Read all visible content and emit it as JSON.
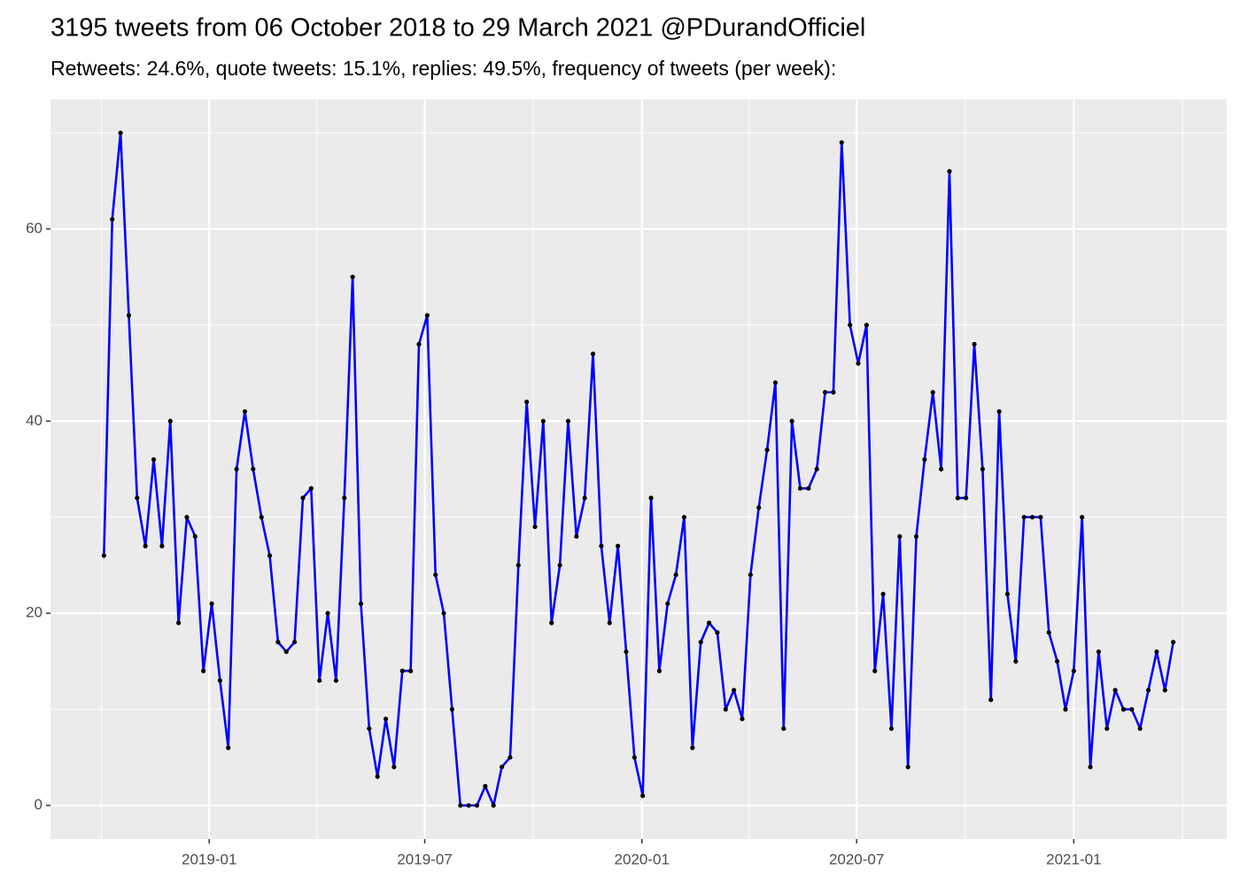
{
  "chart_data": {
    "type": "line",
    "title": "3195 tweets from 06 October 2018 to 29 March 2021 @PDurandOfficiel",
    "subtitle": "Retweets: 24.6%, quote tweets: 15.1%, replies: 49.5%, frequency of tweets (per week):",
    "color": "#0000ff",
    "point_color": "#000000",
    "grid": true,
    "values": [
      26,
      61,
      70,
      51,
      32,
      27,
      36,
      27,
      40,
      19,
      30,
      28,
      14,
      21,
      13,
      6,
      35,
      41,
      35,
      30,
      26,
      17,
      16,
      17,
      32,
      33,
      13,
      20,
      13,
      32,
      55,
      21,
      8,
      3,
      9,
      4,
      14,
      14,
      48,
      51,
      24,
      20,
      10,
      0,
      0,
      0,
      2,
      0,
      4,
      5,
      25,
      42,
      29,
      40,
      19,
      25,
      40,
      28,
      32,
      47,
      27,
      19,
      27,
      16,
      5,
      1,
      32,
      14,
      21,
      24,
      30,
      6,
      17,
      19,
      18,
      10,
      12,
      9,
      24,
      31,
      37,
      44,
      8,
      40,
      33,
      33,
      35,
      43,
      43,
      69,
      50,
      46,
      50,
      14,
      22,
      8,
      28,
      4,
      28,
      36,
      43,
      35,
      66,
      32,
      32,
      48,
      35,
      11,
      41,
      22,
      15,
      30,
      30,
      30,
      18,
      15,
      10,
      14,
      30,
      4,
      16,
      8,
      12,
      10,
      10,
      8,
      12,
      16,
      12,
      17
    ],
    "xlim": [
      -6.45,
      135.45
    ],
    "xticks": [
      {
        "value": 12.7,
        "label": "2019-01"
      },
      {
        "value": 38.7,
        "label": "2019-07"
      },
      {
        "value": 64.9,
        "label": "2020-01"
      },
      {
        "value": 90.8,
        "label": "2020-07"
      },
      {
        "value": 117.0,
        "label": "2021-01"
      }
    ],
    "ylim": [
      -3.5,
      73.5
    ],
    "yticks": [
      0,
      20,
      40,
      60
    ]
  }
}
